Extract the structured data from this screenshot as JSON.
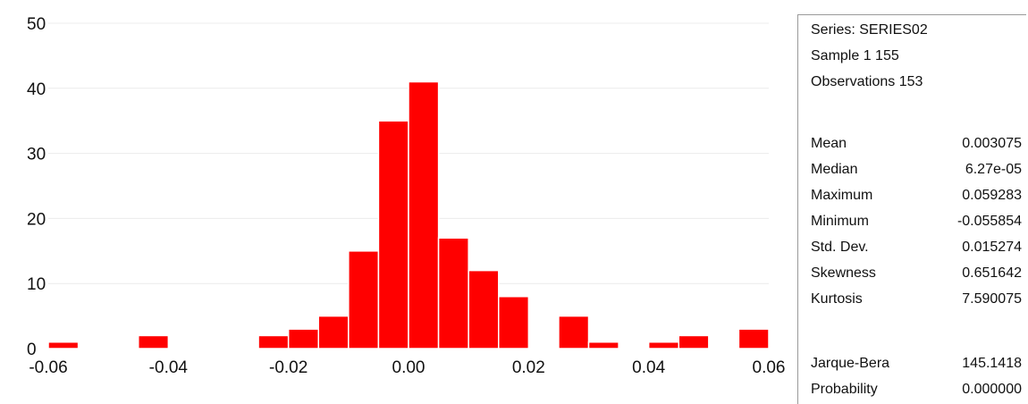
{
  "chart_data": {
    "type": "bar",
    "bins": [
      {
        "x0": -0.06,
        "x1": -0.055,
        "count": 1
      },
      {
        "x0": -0.045,
        "x1": -0.04,
        "count": 2
      },
      {
        "x0": -0.025,
        "x1": -0.02,
        "count": 2
      },
      {
        "x0": -0.02,
        "x1": -0.015,
        "count": 3
      },
      {
        "x0": -0.015,
        "x1": -0.01,
        "count": 5
      },
      {
        "x0": -0.01,
        "x1": -0.005,
        "count": 15
      },
      {
        "x0": -0.005,
        "x1": 0.0,
        "count": 35
      },
      {
        "x0": 0.0,
        "x1": 0.005,
        "count": 41
      },
      {
        "x0": 0.005,
        "x1": 0.01,
        "count": 17
      },
      {
        "x0": 0.01,
        "x1": 0.015,
        "count": 12
      },
      {
        "x0": 0.015,
        "x1": 0.02,
        "count": 8
      },
      {
        "x0": 0.025,
        "x1": 0.03,
        "count": 5
      },
      {
        "x0": 0.03,
        "x1": 0.035,
        "count": 1
      },
      {
        "x0": 0.04,
        "x1": 0.045,
        "count": 1
      },
      {
        "x0": 0.045,
        "x1": 0.05,
        "count": 2
      },
      {
        "x0": 0.055,
        "x1": 0.06,
        "count": 3
      }
    ],
    "xlim": [
      -0.06,
      0.06
    ],
    "ylim": [
      0,
      50
    ],
    "x_ticks": [
      "-0.06",
      "-0.04",
      "-0.02",
      "0.00",
      "0.02",
      "0.04",
      "0.06"
    ],
    "y_ticks": [
      "0",
      "10",
      "20",
      "30",
      "40",
      "50"
    ],
    "grid": true,
    "bar_color": "#ff0000",
    "title": "",
    "xlabel": "",
    "ylabel": ""
  },
  "stats": {
    "header": [
      "Series: SERIES02",
      "Sample 1 155",
      "Observations 153"
    ],
    "rows": [
      {
        "label": "Mean",
        "value": "0.003075"
      },
      {
        "label": "Median",
        "value": "6.27e-05"
      },
      {
        "label": "Maximum",
        "value": "0.059283"
      },
      {
        "label": "Minimum",
        "value": "-0.055854"
      },
      {
        "label": "Std. Dev.",
        "value": "0.015274"
      },
      {
        "label": "Skewness",
        "value": "0.651642"
      },
      {
        "label": "Kurtosis",
        "value": "7.590075"
      }
    ],
    "tests": [
      {
        "label": "Jarque-Bera",
        "value": "145.1418"
      },
      {
        "label": "Probability",
        "value": "0.000000"
      }
    ]
  }
}
